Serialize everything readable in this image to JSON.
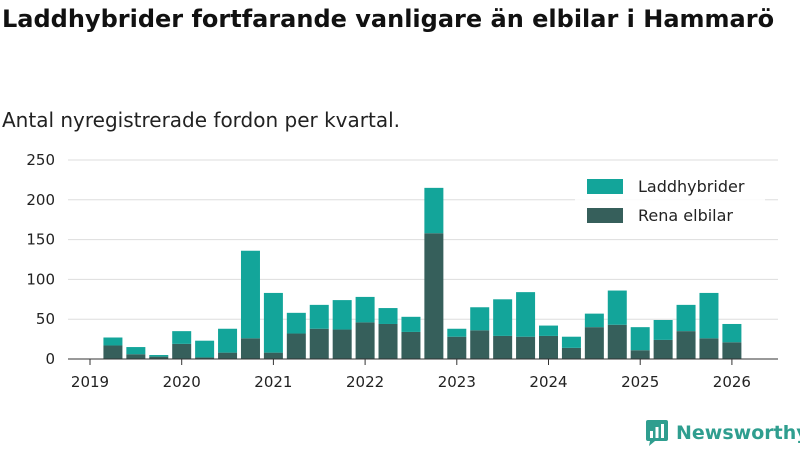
{
  "title": "Laddhybrider fortfarande vanligare än elbilar i Hammarö",
  "subtitle": "Antal nyregistrerade fordon per kvartal.",
  "brand": {
    "name": "Newsworthy",
    "icon": "newsworthy-logo-icon"
  },
  "chart_data": {
    "type": "bar",
    "stacked": true,
    "title": "Laddhybrider fortfarande vanligare än elbilar i Hammarö",
    "subtitle": "Antal nyregistrerade fordon per kvartal.",
    "xlabel": "",
    "ylabel": "",
    "ylim": [
      0,
      250
    ],
    "yticks": [
      0,
      50,
      100,
      150,
      200,
      250
    ],
    "xticks": [
      "2019",
      "2020",
      "2021",
      "2022",
      "2023",
      "2024",
      "2025",
      "2026"
    ],
    "grid": "horizontal",
    "legend_position": "top-right",
    "categories": [
      "2019Q2",
      "2019Q3",
      "2019Q4",
      "2020Q1",
      "2020Q2",
      "2020Q3",
      "2020Q4",
      "2021Q1",
      "2021Q2",
      "2021Q3",
      "2021Q4",
      "2022Q1",
      "2022Q2",
      "2022Q3",
      "2022Q4",
      "2023Q1",
      "2023Q2",
      "2023Q3",
      "2023Q4",
      "2024Q1",
      "2024Q2",
      "2024Q3",
      "2024Q4",
      "2025Q1",
      "2025Q2",
      "2025Q3",
      "2025Q4",
      "2026Q1"
    ],
    "series": [
      {
        "name": "Rena elbilar",
        "color": "#365f5b",
        "values": [
          17,
          6,
          3,
          19,
          2,
          8,
          26,
          8,
          32,
          38,
          37,
          46,
          44,
          34,
          158,
          28,
          36,
          29,
          28,
          29,
          14,
          40,
          43,
          11,
          24,
          35,
          26,
          21
        ]
      },
      {
        "name": "Laddhybrider",
        "color": "#13a59a",
        "values": [
          10,
          9,
          2,
          16,
          21,
          30,
          110,
          75,
          26,
          30,
          37,
          32,
          20,
          19,
          57,
          10,
          29,
          46,
          56,
          13,
          14,
          17,
          43,
          29,
          25,
          33,
          57,
          23
        ]
      }
    ]
  }
}
